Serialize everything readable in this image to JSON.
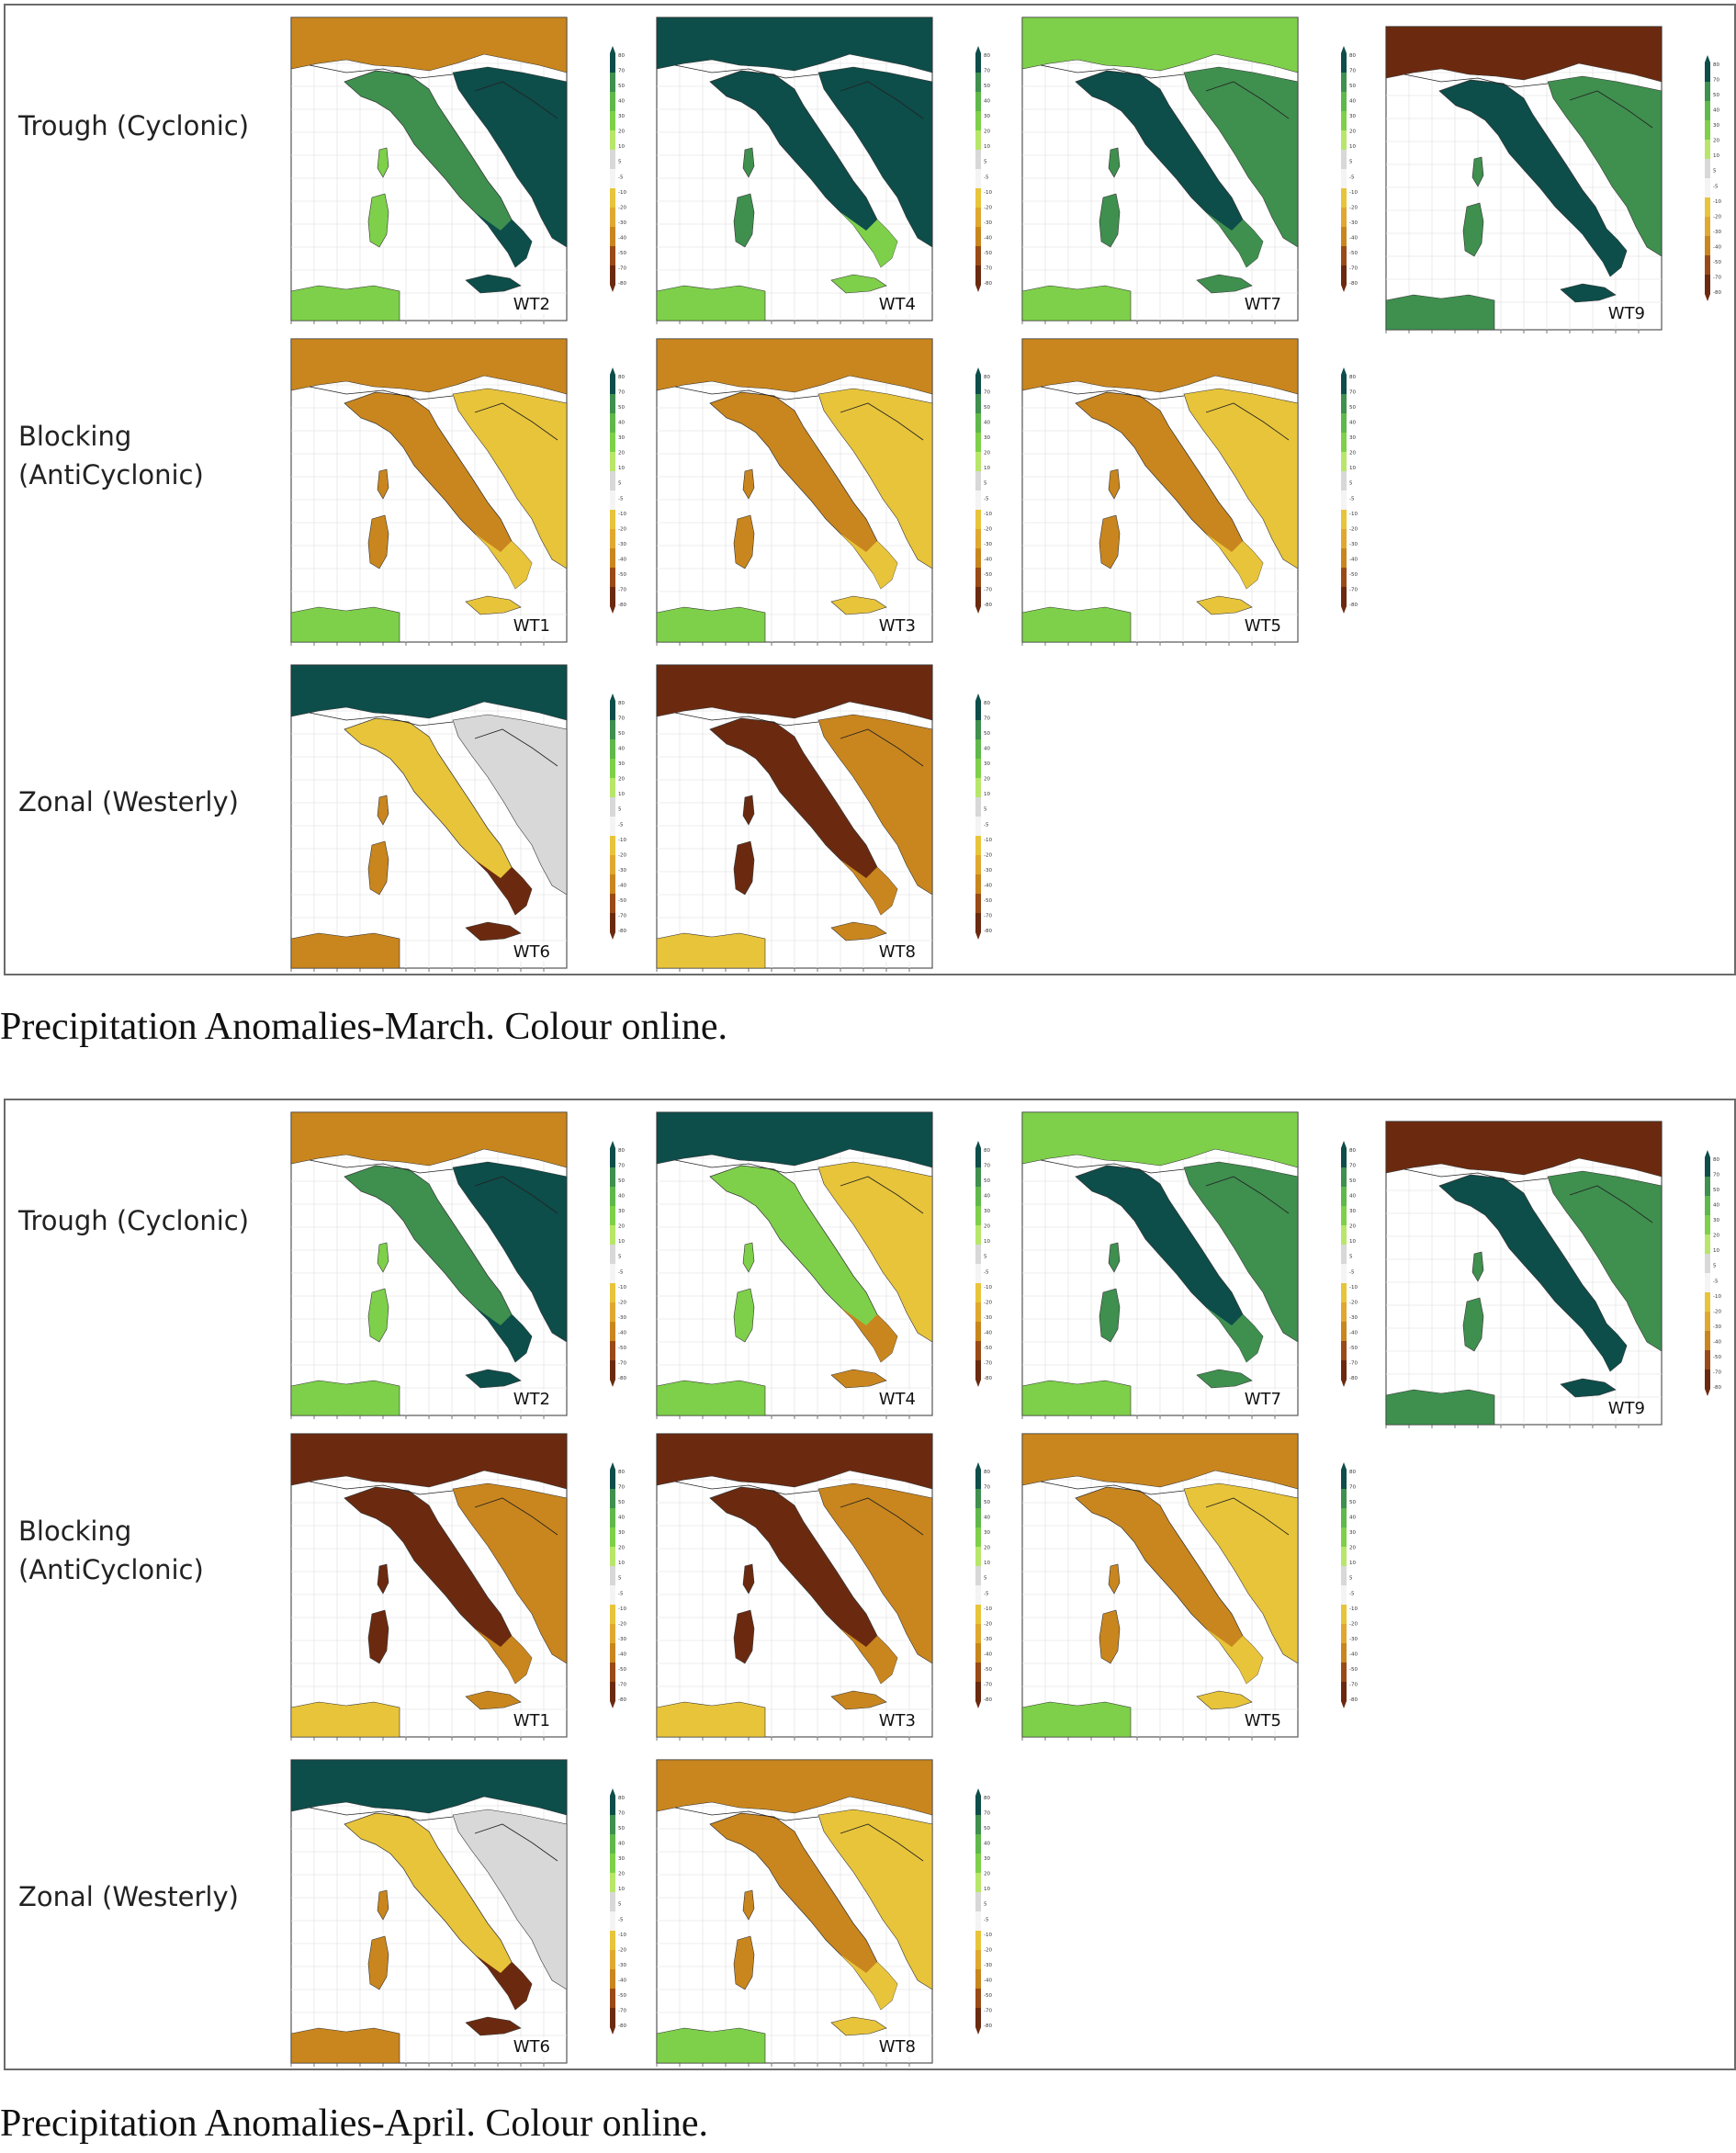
{
  "colors": {
    "frame": "#6b6b6b",
    "wet_strong": "#0d4d4a",
    "wet": "#3f8f4f",
    "wet_light": "#7ed04a",
    "neutral": "#d8d8d8",
    "dry_light": "#e8c43a",
    "dry": "#c9861e",
    "dry_strong": "#6b2a10"
  },
  "colorbar": {
    "ticks": [
      "80",
      "70",
      "50",
      "40",
      "30",
      "20",
      "10",
      "5",
      "-5",
      "-10",
      "-20",
      "-30",
      "-40",
      "-50",
      "-70",
      "-80"
    ]
  },
  "figures": [
    {
      "caption": "Precipitation Anomalies-March. Colour online.",
      "rows": [
        {
          "label_line1": "Trough (Cyclonic)",
          "label_line2": "",
          "maps": [
            {
              "wt": "WT2",
              "regime": "wet_mixed"
            },
            {
              "wt": "WT4",
              "regime": "wet_strong"
            },
            {
              "wt": "WT7",
              "regime": "wet"
            },
            {
              "wt": "WT9",
              "regime": "dry_north_wet_south"
            }
          ]
        },
        {
          "label_line1": "Blocking",
          "label_line2": "(AntiCyclonic)",
          "maps": [
            {
              "wt": "WT1",
              "regime": "dry"
            },
            {
              "wt": "WT3",
              "regime": "dry"
            },
            {
              "wt": "WT5",
              "regime": "dry"
            }
          ]
        },
        {
          "label_line1": "Zonal (Westerly)",
          "label_line2": "",
          "maps": [
            {
              "wt": "WT6",
              "regime": "wet_alps_dry_south"
            },
            {
              "wt": "WT8",
              "regime": "dry_strong"
            }
          ]
        }
      ]
    },
    {
      "caption": "Precipitation Anomalies-April. Colour online.",
      "rows": [
        {
          "label_line1": "Trough (Cyclonic)",
          "label_line2": "",
          "maps": [
            {
              "wt": "WT2",
              "regime": "wet_mixed"
            },
            {
              "wt": "WT4",
              "regime": "wet_nw"
            },
            {
              "wt": "WT7",
              "regime": "wet"
            },
            {
              "wt": "WT9",
              "regime": "dry_north_wet_south"
            }
          ]
        },
        {
          "label_line1": "Blocking",
          "label_line2": "(AntiCyclonic)",
          "maps": [
            {
              "wt": "WT1",
              "regime": "dry_strong"
            },
            {
              "wt": "WT3",
              "regime": "dry_strong"
            },
            {
              "wt": "WT5",
              "regime": "dry"
            }
          ]
        },
        {
          "label_line1": "Zonal (Westerly)",
          "label_line2": "",
          "maps": [
            {
              "wt": "WT6",
              "regime": "wet_alps_dry_south"
            },
            {
              "wt": "WT8",
              "regime": "dry"
            }
          ]
        }
      ]
    }
  ]
}
